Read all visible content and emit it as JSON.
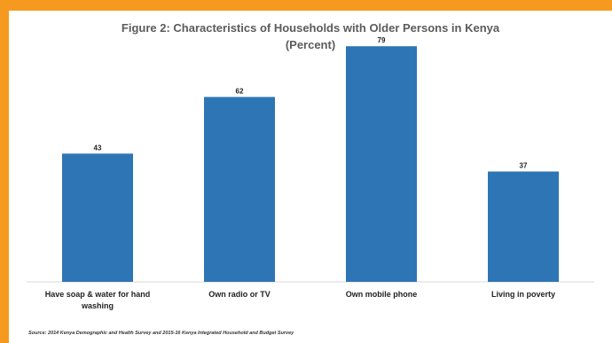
{
  "chart_data": {
    "type": "bar",
    "title": "Figure 2: Characteristics of Households with Older Persons in Kenya",
    "subtitle": "(Percent)",
    "categories": [
      [
        "Have soap & water for hand",
        "washing"
      ],
      [
        "Own radio or TV"
      ],
      [
        "Own mobile phone"
      ],
      [
        "Living in poverty"
      ]
    ],
    "values": [
      43,
      62,
      79,
      37
    ],
    "ylim": [
      0,
      85
    ],
    "bar_color": "#2e75b6",
    "grid": false,
    "legend": "none"
  },
  "source": "Source: 2014 Kenya Demographic and Health Survey and 2015-16 Kenya Integrated Household and Budget Survey"
}
